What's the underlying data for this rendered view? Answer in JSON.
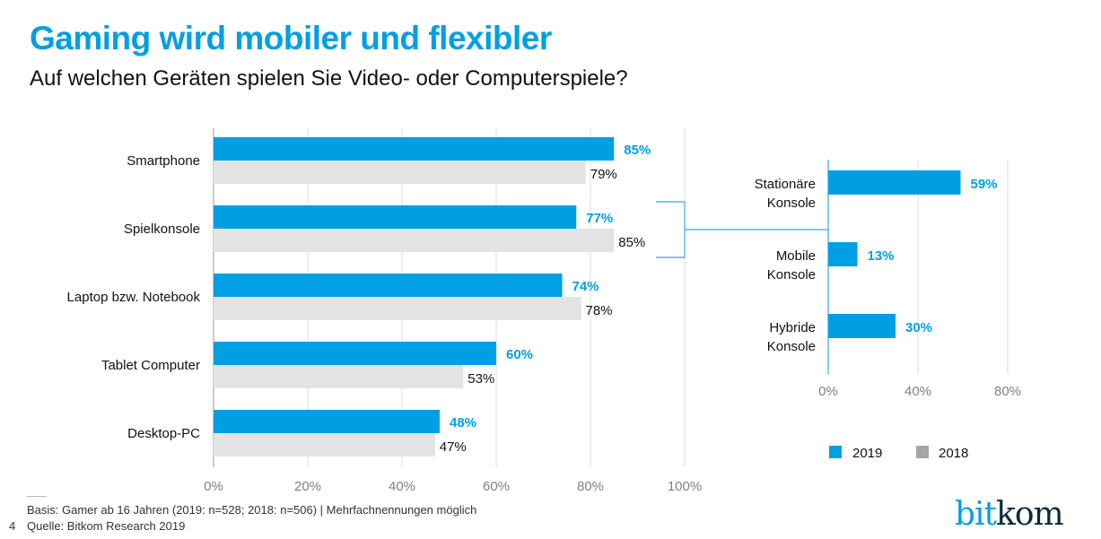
{
  "title": "Gaming wird mobiler und flexibler",
  "subtitle": "Auf welchen Geräten spielen Sie Video- oder Computerspiele?",
  "footer": {
    "basis": "Basis: Gamer ab 16 Jahren (2019: n=528; 2018: n=506) | Mehrfachnennungen möglich",
    "source": "Quelle: Bitkom Research 2019",
    "page_number": "4"
  },
  "logo": {
    "part1": "bit",
    "part2": "kom"
  },
  "colors": {
    "accent": "#009fe3",
    "series_2019": "#009fe3",
    "series_2018": "#e3e3e3",
    "legend_2018": "#a6a6a6"
  },
  "chart_data": [
    {
      "type": "bar",
      "orientation": "horizontal",
      "title": "Auf welchen Geräten spielen Sie Video- oder Computerspiele?",
      "categories": [
        "Smartphone",
        "Spielkonsole",
        "Laptop bzw. Notebook",
        "Tablet Computer",
        "Desktop-PC"
      ],
      "series": [
        {
          "name": "2019",
          "values": [
            85,
            77,
            74,
            60,
            48
          ],
          "labels": [
            "85%",
            "77%",
            "74%",
            "60%",
            "48%"
          ]
        },
        {
          "name": "2018",
          "values": [
            79,
            85,
            78,
            53,
            47
          ],
          "labels": [
            "79%",
            "85%",
            "78%",
            "53%",
            "47%"
          ]
        }
      ],
      "xlim": [
        0,
        100
      ],
      "ticks": [
        0,
        20,
        40,
        60,
        80,
        100
      ],
      "tick_labels": [
        "0%",
        "20%",
        "40%",
        "60%",
        "80%",
        "100%"
      ],
      "grid": true
    },
    {
      "type": "bar",
      "orientation": "horizontal",
      "breakdown_of": "Spielkonsole",
      "categories": [
        [
          "Stationäre",
          "Konsole"
        ],
        [
          "Mobile",
          "Konsole"
        ],
        [
          "Hybride",
          "Konsole"
        ]
      ],
      "series": [
        {
          "name": "2019",
          "values": [
            59,
            13,
            30
          ],
          "labels": [
            "59%",
            "13%",
            "30%"
          ]
        }
      ],
      "xlim": [
        0,
        80
      ],
      "ticks": [
        0,
        40,
        80
      ],
      "tick_labels": [
        "0%",
        "40%",
        "80%"
      ],
      "grid": true
    }
  ],
  "legend": {
    "items": [
      "2019",
      "2018"
    ],
    "position": "bottom-right"
  }
}
